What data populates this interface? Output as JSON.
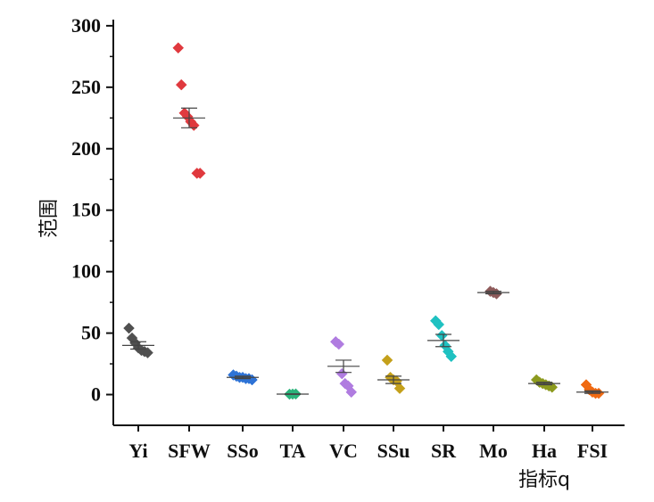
{
  "chart_data": {
    "type": "scatter",
    "title": "",
    "xlabel": "指标q",
    "ylabel": "范围",
    "ylim": [
      -25,
      305
    ],
    "yticks": [
      0,
      50,
      100,
      150,
      200,
      250,
      300
    ],
    "grid": false,
    "categories": [
      "Yi",
      "SFW",
      "SSo",
      "TA",
      "VC",
      "SSu",
      "SR",
      "Mo",
      "Ha",
      "FSI"
    ],
    "series": [
      {
        "category": "Yi",
        "color": "#505050",
        "mean": 40,
        "err": 3,
        "points": [
          54,
          46,
          42,
          38,
          36,
          35,
          34
        ]
      },
      {
        "category": "SFW",
        "color": "#e0393e",
        "mean": 225,
        "err": 8,
        "points": [
          282,
          252,
          229,
          226,
          222,
          219,
          180,
          180
        ]
      },
      {
        "category": "SSo",
        "color": "#2e73d6",
        "mean": 14,
        "err": 1,
        "points": [
          16,
          15,
          14,
          14,
          13,
          13,
          12
        ]
      },
      {
        "category": "TA",
        "color": "#2ab37a",
        "mean": 0.4,
        "err": 0.2,
        "points": [
          0.3,
          0.4,
          0.5
        ]
      },
      {
        "category": "VC",
        "color": "#b07ce0",
        "mean": 23,
        "err": 5,
        "points": [
          43,
          41,
          17,
          9,
          7,
          2
        ]
      },
      {
        "category": "SSu",
        "color": "#c4a01a",
        "mean": 12,
        "err": 3,
        "points": [
          28,
          14,
          12,
          11,
          5
        ]
      },
      {
        "category": "SR",
        "color": "#1fc1c1",
        "mean": 44,
        "err": 5,
        "points": [
          60,
          57,
          48,
          40,
          35,
          31
        ]
      },
      {
        "category": "Mo",
        "color": "#8e5a5a",
        "mean": 83,
        "err": 1,
        "points": [
          84,
          83,
          82
        ]
      },
      {
        "category": "Ha",
        "color": "#8c9a1e",
        "mean": 9,
        "err": 1,
        "points": [
          12,
          10,
          9,
          8,
          7,
          6
        ]
      },
      {
        "category": "FSI",
        "color": "#f06a12",
        "mean": 2,
        "err": 1,
        "points": [
          8,
          4,
          2,
          1,
          1
        ]
      }
    ]
  }
}
